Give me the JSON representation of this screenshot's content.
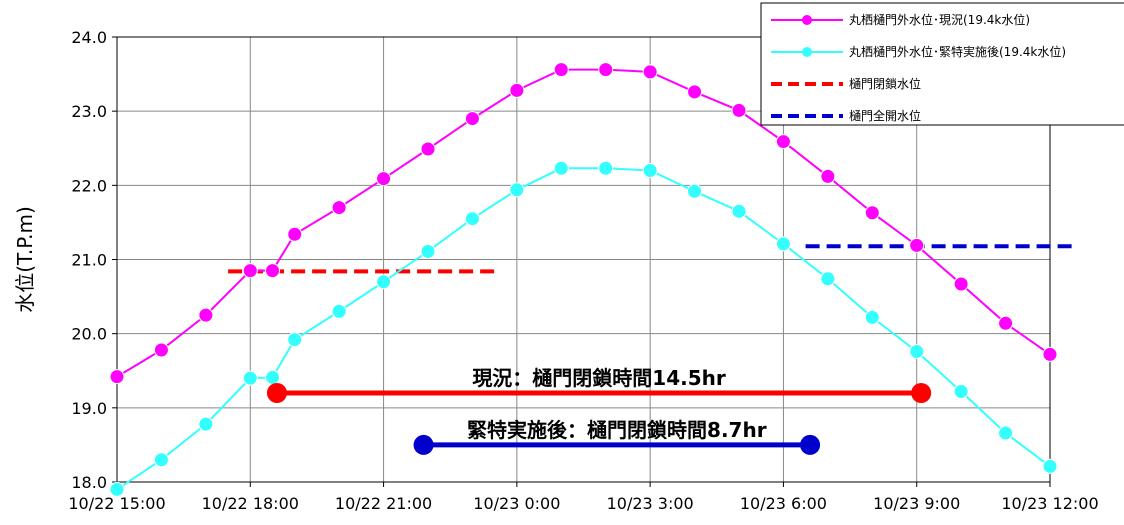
{
  "chart_data": {
    "type": "line",
    "ylabel": "水位(T.P.m)",
    "xlim": [
      0,
      21
    ],
    "ylim": [
      18.0,
      24.0
    ],
    "x_tick_labels": [
      "10/22 15:00",
      "10/22 18:00",
      "10/22 21:00",
      "10/23 0:00",
      "10/23 3:00",
      "10/23 6:00",
      "10/23 9:00",
      "10/23 12:00"
    ],
    "y_tick_labels": [
      "18.0",
      "19.0",
      "20.0",
      "21.0",
      "22.0",
      "23.0",
      "24.0"
    ],
    "grid": true,
    "legend_position": "top-right",
    "series": [
      {
        "name": "丸栖樋門外水位･現況(19.4k水位)",
        "color": "#ff00ff",
        "marker": "circle",
        "x": [
          0,
          1,
          2,
          3,
          3.5,
          4,
          5,
          6,
          7,
          8,
          9,
          10,
          11,
          12,
          13,
          14,
          15,
          16,
          17,
          18,
          19,
          20,
          21
        ],
        "y": [
          19.42,
          19.78,
          20.25,
          20.85,
          20.85,
          21.34,
          21.7,
          22.09,
          22.49,
          22.9,
          23.28,
          23.56,
          23.56,
          23.53,
          23.26,
          23.01,
          22.59,
          22.12,
          21.63,
          21.19,
          20.67,
          20.14,
          19.72
        ]
      },
      {
        "name": "丸栖樋門外水位･緊特実施後(19.4k水位)",
        "color": "#33ffff",
        "marker": "circle",
        "x": [
          0,
          1,
          2,
          3,
          3.5,
          4,
          5,
          6,
          7,
          8,
          9,
          10,
          11,
          12,
          13,
          14,
          15,
          16,
          17,
          18,
          19,
          20,
          21
        ],
        "y": [
          17.9,
          18.3,
          18.78,
          19.4,
          19.41,
          19.92,
          20.3,
          20.7,
          21.11,
          21.55,
          21.94,
          22.23,
          22.23,
          22.2,
          21.92,
          21.65,
          21.21,
          20.74,
          20.22,
          19.76,
          19.22,
          18.66,
          18.21
        ]
      },
      {
        "name": "樋門閉鎖水位",
        "color": "#ff0000",
        "style": "dashed",
        "x": [
          2.5,
          8.5
        ],
        "y": [
          20.84,
          20.84
        ]
      },
      {
        "name": "樋門全開水位",
        "color": "#0000cc",
        "style": "dashed",
        "x": [
          15.5,
          21.5
        ],
        "y": [
          21.18,
          21.18
        ]
      }
    ],
    "annotations": [
      {
        "label": "現況：樋門閉鎖時間14.5hr",
        "color": "#ff0000",
        "x": [
          3.6,
          18.1
        ],
        "y": 19.2
      },
      {
        "label": "緊特実施後：樋門閉鎖時間8.7hr",
        "color": "#0000cc",
        "x": [
          6.9,
          15.6
        ],
        "y": 18.5
      }
    ]
  }
}
